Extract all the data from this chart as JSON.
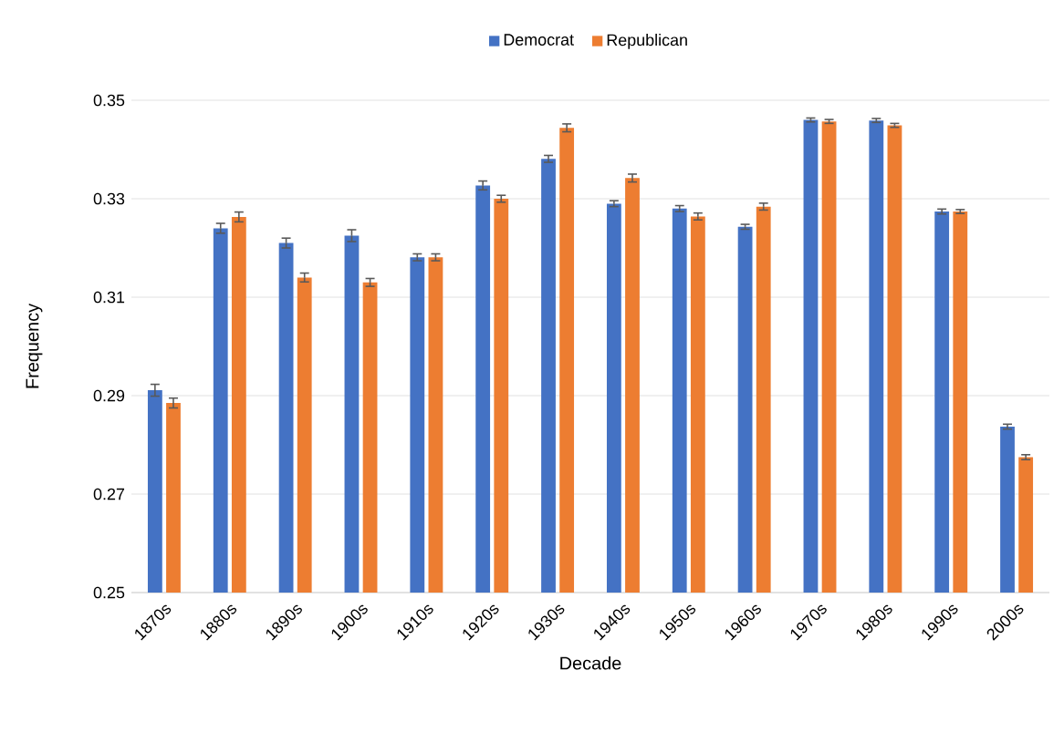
{
  "chart_data": {
    "type": "bar",
    "xlabel": "Decade",
    "ylabel": "Frequency",
    "categories": [
      "1870s",
      "1880s",
      "1890s",
      "1900s",
      "1910s",
      "1920s",
      "1930s",
      "1940s",
      "1950s",
      "1960s",
      "1970s",
      "1980s",
      "1990s",
      "2000s"
    ],
    "series": [
      {
        "name": "Democrat",
        "color": "#4472c4",
        "values": [
          0.2911,
          0.324,
          0.321,
          0.3225,
          0.3181,
          0.3327,
          0.3381,
          0.329,
          0.328,
          0.3243,
          0.346,
          0.3459,
          0.3274,
          0.2837
        ],
        "errors": [
          0.0012,
          0.001,
          0.001,
          0.0012,
          0.0007,
          0.0009,
          0.0007,
          0.0006,
          0.0006,
          0.0005,
          0.0004,
          0.0004,
          0.0005,
          0.0005
        ]
      },
      {
        "name": "Republican",
        "color": "#ed7d31",
        "values": [
          0.2885,
          0.3263,
          0.314,
          0.313,
          0.3181,
          0.33,
          0.3444,
          0.3342,
          0.3264,
          0.3284,
          0.3457,
          0.3449,
          0.3274,
          0.2775
        ],
        "errors": [
          0.001,
          0.001,
          0.0009,
          0.0008,
          0.0007,
          0.0007,
          0.0008,
          0.0008,
          0.0007,
          0.0007,
          0.0004,
          0.0004,
          0.0004,
          0.0005
        ]
      }
    ],
    "ylim": [
      0.25,
      0.35
    ],
    "yticks": [
      0.25,
      0.27,
      0.29,
      0.31,
      0.33,
      0.35
    ],
    "grid": "y",
    "legend": "top"
  }
}
